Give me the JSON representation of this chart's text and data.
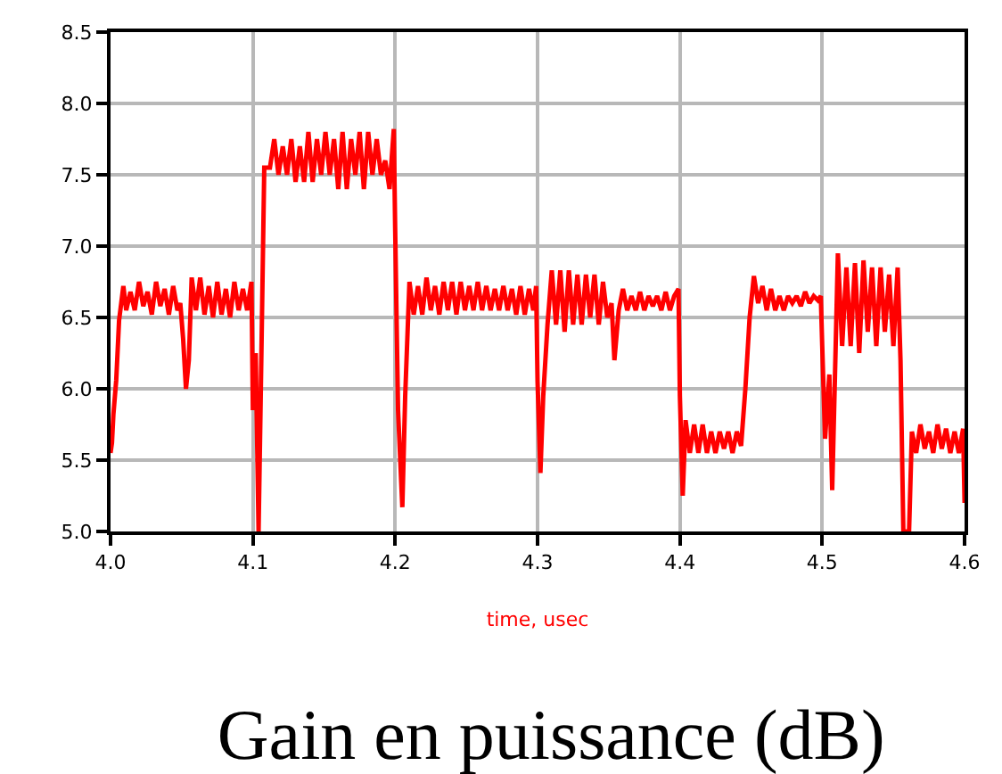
{
  "chart_data": {
    "type": "line",
    "title": "Gain en puissance (dB)",
    "xlabel": "time, usec",
    "xlim": [
      4.0,
      4.6
    ],
    "xticks": [
      {
        "value": 4.0,
        "label": "4.0"
      },
      4.1,
      4.2,
      4.3,
      4.4,
      4.5,
      {
        "value": 4.6,
        "label": "4.6"
      }
    ],
    "ylim": [
      5.0,
      8.5
    ],
    "yticks": [
      {
        "value": 5.0,
        "label": "5.0"
      },
      5.5,
      {
        "value": 6.0,
        "label": "6.0"
      },
      6.5,
      {
        "value": 7.0,
        "label": "7.0"
      },
      7.5,
      {
        "value": 8.0,
        "label": "8.0"
      },
      8.5
    ],
    "grid": true,
    "marker": "none",
    "line_style": "solid",
    "series": [
      {
        "color": "#ff0000",
        "x": [
          4.0,
          4.001,
          4.002,
          4.004,
          4.006,
          4.009,
          4.011,
          4.014,
          4.017,
          4.02,
          4.023,
          4.026,
          4.029,
          4.032,
          4.035,
          4.038,
          4.041,
          4.044,
          4.047,
          4.049,
          4.051,
          4.053,
          4.055,
          4.057,
          4.06,
          4.063,
          4.066,
          4.069,
          4.072,
          4.075,
          4.078,
          4.081,
          4.084,
          4.087,
          4.09,
          4.093,
          4.096,
          4.099,
          4.1,
          4.102,
          4.104,
          4.106,
          4.108,
          4.112,
          4.115,
          4.118,
          4.121,
          4.124,
          4.127,
          4.13,
          4.133,
          4.136,
          4.139,
          4.142,
          4.145,
          4.148,
          4.151,
          4.154,
          4.157,
          4.16,
          4.163,
          4.166,
          4.169,
          4.172,
          4.175,
          4.178,
          4.181,
          4.184,
          4.187,
          4.19,
          4.193,
          4.196,
          4.199,
          4.2,
          4.202,
          4.205,
          4.207,
          4.21,
          4.213,
          4.216,
          4.219,
          4.222,
          4.225,
          4.228,
          4.231,
          4.234,
          4.237,
          4.24,
          4.243,
          4.246,
          4.249,
          4.252,
          4.255,
          4.258,
          4.261,
          4.264,
          4.267,
          4.27,
          4.273,
          4.276,
          4.279,
          4.282,
          4.285,
          4.288,
          4.291,
          4.294,
          4.297,
          4.299,
          4.3,
          4.302,
          4.304,
          4.307,
          4.31,
          4.313,
          4.316,
          4.319,
          4.322,
          4.325,
          4.328,
          4.331,
          4.334,
          4.337,
          4.34,
          4.343,
          4.346,
          4.349,
          4.352,
          4.354,
          4.357,
          4.36,
          4.363,
          4.366,
          4.369,
          4.372,
          4.375,
          4.378,
          4.381,
          4.384,
          4.387,
          4.39,
          4.393,
          4.396,
          4.399,
          4.4,
          4.402,
          4.404,
          4.407,
          4.41,
          4.413,
          4.416,
          4.419,
          4.422,
          4.425,
          4.428,
          4.431,
          4.434,
          4.437,
          4.44,
          4.443,
          4.446,
          4.449,
          4.452,
          4.455,
          4.458,
          4.461,
          4.464,
          4.467,
          4.47,
          4.473,
          4.476,
          4.479,
          4.482,
          4.485,
          4.488,
          4.491,
          4.494,
          4.497,
          4.499,
          4.5,
          4.502,
          4.505,
          4.507,
          4.509,
          4.511,
          4.514,
          4.517,
          4.52,
          4.523,
          4.526,
          4.529,
          4.532,
          4.535,
          4.538,
          4.541,
          4.544,
          4.547,
          4.55,
          4.553,
          4.555,
          4.557,
          4.559,
          4.561,
          4.563,
          4.566,
          4.569,
          4.572,
          4.575,
          4.578,
          4.581,
          4.584,
          4.587,
          4.59,
          4.593,
          4.596,
          4.599,
          4.6
        ],
        "values": [
          5.55,
          5.62,
          5.82,
          6.06,
          6.48,
          6.72,
          6.55,
          6.68,
          6.55,
          6.75,
          6.58,
          6.68,
          6.52,
          6.75,
          6.58,
          6.7,
          6.52,
          6.72,
          6.55,
          6.6,
          6.35,
          6.0,
          6.2,
          6.78,
          6.55,
          6.78,
          6.52,
          6.72,
          6.5,
          6.75,
          6.52,
          6.7,
          6.5,
          6.75,
          6.55,
          6.7,
          6.55,
          6.75,
          5.85,
          6.25,
          5.0,
          6.25,
          7.55,
          7.55,
          7.75,
          7.5,
          7.7,
          7.5,
          7.75,
          7.45,
          7.7,
          7.45,
          7.8,
          7.45,
          7.75,
          7.5,
          7.8,
          7.5,
          7.75,
          7.4,
          7.8,
          7.4,
          7.75,
          7.5,
          7.8,
          7.4,
          7.8,
          7.5,
          7.75,
          7.5,
          7.6,
          7.4,
          7.82,
          7.1,
          5.85,
          5.17,
          5.95,
          6.75,
          6.52,
          6.72,
          6.52,
          6.78,
          6.55,
          6.72,
          6.52,
          6.75,
          6.55,
          6.75,
          6.52,
          6.75,
          6.55,
          6.72,
          6.55,
          6.75,
          6.55,
          6.72,
          6.55,
          6.7,
          6.55,
          6.72,
          6.55,
          6.7,
          6.52,
          6.72,
          6.52,
          6.7,
          6.55,
          6.72,
          6.05,
          5.41,
          5.95,
          6.45,
          6.83,
          6.45,
          6.83,
          6.4,
          6.83,
          6.45,
          6.8,
          6.45,
          6.8,
          6.5,
          6.8,
          6.45,
          6.75,
          6.5,
          6.6,
          6.2,
          6.55,
          6.7,
          6.55,
          6.65,
          6.55,
          6.68,
          6.55,
          6.65,
          6.58,
          6.65,
          6.55,
          6.68,
          6.55,
          6.65,
          6.7,
          5.95,
          5.25,
          5.78,
          5.55,
          5.75,
          5.55,
          5.75,
          5.55,
          5.7,
          5.55,
          5.7,
          5.58,
          5.7,
          5.55,
          5.7,
          5.6,
          6.0,
          6.5,
          6.79,
          6.6,
          6.72,
          6.55,
          6.7,
          6.55,
          6.65,
          6.55,
          6.65,
          6.6,
          6.65,
          6.58,
          6.68,
          6.6,
          6.65,
          6.62,
          6.65,
          6.3,
          5.65,
          6.1,
          5.29,
          6.11,
          6.95,
          6.3,
          6.85,
          6.3,
          6.88,
          6.25,
          6.9,
          6.4,
          6.85,
          6.3,
          6.85,
          6.4,
          6.8,
          6.3,
          6.85,
          6.2,
          5.0,
          5.0,
          5.0,
          5.7,
          5.55,
          5.75,
          5.58,
          5.7,
          5.55,
          5.75,
          5.58,
          5.72,
          5.55,
          5.7,
          5.55,
          5.72,
          5.2
        ]
      }
    ]
  }
}
